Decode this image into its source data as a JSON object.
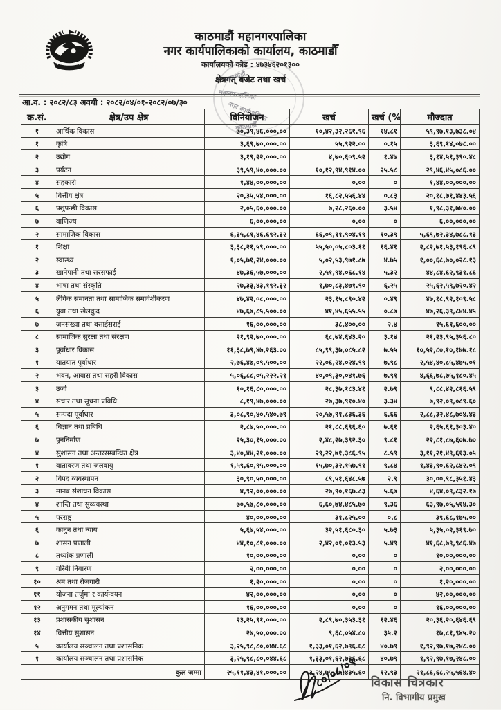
{
  "header": {
    "org_name": "काठमाडौं महानगरपालिका",
    "office_name": "नगर कार्यपालिकाको कार्यालय, काठमाडौँ",
    "office_code_line": "कार्यालयको कोड : ४७३४६२०१३००",
    "report_title": "क्षेत्रगत् बजेट तथा खर्च",
    "fiscal_line": "आ.व. : २०८२/८३ अवधी : २०८२/०४/०१-२०८२/०७/३०",
    "stamp_text_1": "काठमाडौं",
    "stamp_text_2": "महानगरपालिका",
    "stamp_text_3": "नगर कार्यपालिका",
    "stamp_text_4": "काठमाडौँ"
  },
  "table": {
    "columns": [
      "क्र.सं.",
      "क्षेत्र/उप क्षेत्र",
      "विनियोजन",
      "खर्च",
      "खर्च (%)",
      "मौज्दात"
    ],
    "rows": [
      {
        "sn": "१",
        "name": "आर्थिक विकास",
        "alloc": "७०,३९,४६,०००.००",
        "exp": "१०,४२,३२,२६१.९६",
        "pct": "१४.८१",
        "bal": "५९,९७,१३,७३८.०४",
        "main": true
      },
      {
        "sn": "१",
        "name": "कृषि",
        "alloc": "३,६९,७०,०००.००",
        "exp": "५५,९२२.००",
        "pct": "०.१५",
        "bal": "३,६९,१४,०७८.००"
      },
      {
        "sn": "२",
        "name": "उद्योग",
        "alloc": "३,१९,२२,०००.००",
        "exp": "४,७०,६०९.५२",
        "pct": "१.४७",
        "bal": "३,१४,५१,३९०.४८"
      },
      {
        "sn": "३",
        "name": "पर्यटन",
        "alloc": "३९,५९,४०,०००.००",
        "exp": "१०,१२,९४,९१४.००",
        "pct": "२५.५८",
        "bal": "२९,४६,४५,०८६.००"
      },
      {
        "sn": "४",
        "name": "सहकारी",
        "alloc": "१,४४,००,०००.००",
        "exp": "०.००",
        "pct": "०",
        "bal": "१,४४,००,०००.००"
      },
      {
        "sn": "५",
        "name": "वित्तीय क्षेत्र",
        "alloc": "२०,३५,५४,०००.००",
        "exp": "१६,८२,५५६.४४",
        "pct": "०.८३",
        "bal": "२०,१८,७१,४४३.५६"
      },
      {
        "sn": "६",
        "name": "पशुपन्छी विकास",
        "alloc": "२,०५,६०,०००.००",
        "exp": "७,२८,२६०.००",
        "pct": "३.५४",
        "bal": "१,९८,३१,७४०.००"
      },
      {
        "sn": "७",
        "name": "वाणिज्य",
        "alloc": "६,००,०००.००",
        "exp": "०.००",
        "pct": "०",
        "bal": "६,००,०००.००"
      },
      {
        "sn": "२",
        "name": "सामाजिक विकास",
        "alloc": "६,३५,८१,४६,६९२.३२",
        "exp": "६६,०९,११,९०४.१९",
        "pct": "१०.३९",
        "bal": "५,६९,७२,३४,७८८.१३",
        "main": true
      },
      {
        "sn": "१",
        "name": "शिक्षा",
        "alloc": "३,३८,२१,५९,०००.००",
        "exp": "५५,५०,०५,८०३.११",
        "pct": "१६.४१",
        "bal": "२,८२,७१,५३,१९६.८९"
      },
      {
        "sn": "२",
        "name": "स्वास्थ्य",
        "alloc": "१,०५,७१,२४,०००.००",
        "exp": "५,०२,५३,९७१.८७",
        "pct": "४.७५",
        "bal": "१,००,६८,७०,०२८.१३"
      },
      {
        "sn": "३",
        "name": "खानेपानी तथा सरसफाई",
        "alloc": "४७,३६,५७,०००.००",
        "exp": "२,५१,९४,०६८.१४",
        "pct": "५.३२",
        "bal": "४४,८४,६२,९३१.८६"
      },
      {
        "sn": "४",
        "name": "भाषा तथा संस्कृति",
        "alloc": "२७,३३,४३,१९२.३२",
        "exp": "१,७०,८३,४७१.९०",
        "pct": "६.२५",
        "bal": "२५,६२,५९,७२०.४२"
      },
      {
        "sn": "५",
        "name": "लैंगिक समानता तथा सामाजिक समावेशीकरण",
        "alloc": "४७,४२,०८,०००.००",
        "exp": "२३,१५,८९०.४२",
        "pct": "०.४९",
        "bal": "४७,१८,९२,१०९.५८"
      },
      {
        "sn": "६",
        "name": "युवा तथा खेलकुद",
        "alloc": "४७,६७,८५,५००.००",
        "exp": "४१,४५,६५५.५५",
        "pct": "०.८७",
        "bal": "४७,२६,३९,८४४.४५"
      },
      {
        "sn": "७",
        "name": "जनसंख्या तथा बसाईसराई",
        "alloc": "१६,००,०००.००",
        "exp": "३८,४००.००",
        "pct": "२.४",
        "bal": "१५,६१,६००.००"
      },
      {
        "sn": "८",
        "name": "सामाजिक सुरक्षा तथा संरक्षण",
        "alloc": "२१,९२,७०,०००.००",
        "exp": "६८,७४,६४३.२०",
        "pct": "३.१४",
        "bal": "२१,२३,९५,३५६.८०"
      },
      {
        "sn": "३",
        "name": "पूर्वाधार विकास",
        "alloc": "११,३८,७९,४७,२६३.००",
        "exp": "८५,९९,३७,०८५.८२",
        "pct": "७.५५",
        "bal": "१०,५२,८०,१०,१७७.१८",
        "main": true
      },
      {
        "sn": "१",
        "name": "यातयात पूर्वाधार",
        "alloc": "२,७६,४७,०९,५००.००",
        "exp": "२२,०६,२४,०२४.९९",
        "pct": "७.९८",
        "bal": "२,५४,४०,८५,४७५.०१"
      },
      {
        "sn": "२",
        "name": "भवन, आवास तथा सहरी विकास",
        "alloc": "५,०६,८८,०५,२२२.२१",
        "exp": "४०,०९,३०,०४१.७६",
        "pct": "७.९१",
        "bal": "४,६६,७८,७५,१८०.४५"
      },
      {
        "sn": "३",
        "name": "उर्जा",
        "alloc": "१०,१६,८०,०००.००",
        "exp": "२८,३७,१८३.४१",
        "pct": "२.७९",
        "bal": "९,८८,४२,८१६.५९"
      },
      {
        "sn": "४",
        "name": "संचार तथा सूचना प्रबिधि",
        "alloc": "८,१९,४७,०००.००",
        "exp": "२७,३७,९१०.४०",
        "pct": "३.३४",
        "bal": "७,९२,०९,०८९.६०"
      },
      {
        "sn": "५",
        "name": "सम्पदा पूर्वाधार",
        "alloc": "३,०८,९०,४०,५४०.७९",
        "exp": "२०,५७,९१,८३६.३६",
        "pct": "६.६६",
        "bal": "२,८८,३२,४८,७०४.४३"
      },
      {
        "sn": "६",
        "name": "बिज्ञान तथा प्रबिधि",
        "alloc": "२,८७,५०,०००.००",
        "exp": "२१,८८,६९६.६०",
        "pct": "७.६१",
        "bal": "२,६५,६१,३०३.४०"
      },
      {
        "sn": "७",
        "name": "पुननिर्माण",
        "alloc": "२५,३०,१५,०००.००",
        "exp": "२,४८,२७,३९२.३०",
        "pct": "९.८१",
        "bal": "२२,८१,८७,६०७.७०"
      },
      {
        "sn": "४",
        "name": "सुशासन तथा अन्तरसम्बन्धित क्षेत्र",
        "alloc": "३,४०,४४,२१,०००.००",
        "exp": "२९,२२,७१,३८६.९५",
        "pct": "८.५९",
        "bal": "३,११,२१,४९,६१३.०५",
        "main": true
      },
      {
        "sn": "१",
        "name": "वातावरण तथा जलवायु",
        "alloc": "१,५९,६०,९५,०००.००",
        "exp": "१५,७०,३२,१५७.९१",
        "pct": "९.८४",
        "bal": "१,४३,९०,६२,८४२.०९"
      },
      {
        "sn": "२",
        "name": "विपद व्यवस्थापन",
        "alloc": "३०,९०,५०,०००.००",
        "exp": "८९,५१,६४८.५७",
        "pct": "२.९",
        "bal": "३०,००,९८,३५१.४३"
      },
      {
        "sn": "३",
        "name": "मानब संशाधन विकास",
        "alloc": "४,९२,००,०००.००",
        "exp": "२७,९०,१६७.८३",
        "pct": "५.६७",
        "bal": "४,६४,०९,८३२.१७"
      },
      {
        "sn": "४",
        "name": "शान्ति तथा सुव्यवस्था",
        "alloc": "७०,५७,८०,०००.००",
        "exp": "६,६०,७४,४८५.७०",
        "pct": "९.३६",
        "bal": "६३,९७,०५,५१४.३०"
      },
      {
        "sn": "५",
        "name": "परराष्ट्र",
        "alloc": "४०,००,०००.००",
        "exp": "३१,८२५.००",
        "pct": "०.८",
        "bal": "३९,६८,१७५.००"
      },
      {
        "sn": "६",
        "name": "कानुन तथा न्याय",
        "alloc": "५,६७,५४,०००.००",
        "exp": "३२,५१,६८०.३०",
        "pct": "५.७३",
        "bal": "५,३५,०२,३१९.७०"
      },
      {
        "sn": "७",
        "name": "शासन प्रणाली",
        "alloc": "४४,१०,८१,०००.००",
        "exp": "२,४२,०१,०१३.५३",
        "pct": "५.४९",
        "bal": "४१,६८,७९,९८६.४७"
      },
      {
        "sn": "८",
        "name": "तथ्यांक प्रणाली",
        "alloc": "१०,००,०००.००",
        "exp": "०.००",
        "pct": "०",
        "bal": "१०,००,०००.००"
      },
      {
        "sn": "९",
        "name": "गरिबी निवारण",
        "alloc": "२,००,०००.००",
        "exp": "०.००",
        "pct": "०",
        "bal": "२,००,०००.००"
      },
      {
        "sn": "१०",
        "name": "श्रम तथा रोजगारी",
        "alloc": "१,२०,०००.००",
        "exp": "०.००",
        "pct": "०",
        "bal": "१,२०,०००.००"
      },
      {
        "sn": "११",
        "name": "योजना तर्जुमा र कार्यन्वयन",
        "alloc": "४२,००,०००.००",
        "exp": "०.००",
        "pct": "०",
        "bal": "४२,००,०००.००"
      },
      {
        "sn": "१२",
        "name": "अनुगमन तथा मूल्यांकन",
        "alloc": "१६,००,०००.००",
        "exp": "०.००",
        "pct": "०",
        "bal": "१६,००,०००.००"
      },
      {
        "sn": "१३",
        "name": "प्रशासकीय सुशासन",
        "alloc": "२३,२५,९१,०००.००",
        "exp": "२,८९,७०,३५३.३१",
        "pct": "१२.४६",
        "bal": "२०,३६,२०,६४६.६९"
      },
      {
        "sn": "१४",
        "name": "वित्तीय सुशासन",
        "alloc": "२७,५०,०००.००",
        "exp": "९,६८,०५४.८०",
        "pct": "३५.२",
        "bal": "१७,८१,९४५.२०"
      },
      {
        "sn": "५",
        "name": "कार्यालय सञ्चालन तथा प्रशासनिक",
        "alloc": "३,२५,९८,८०,०४४.६८",
        "exp": "१,३३,०१,६२,७९६.६८",
        "pct": "४०.७९",
        "bal": "१,९२,९७,१७,२४८.००",
        "main": true
      },
      {
        "sn": "१",
        "name": "कार्यालय सञ्चालन तथा प्रशासनिक",
        "alloc": "३,२५,९८,८०,०४४.६८",
        "exp": "१,३३,०१,६२,७९६.६८",
        "pct": "४०.७९",
        "bal": "१,९२,९७,१७,२४८.००"
      }
    ],
    "total": {
      "label": "कुल जम्मा",
      "alloc": "२५,११,४३,४१,०००.००",
      "exp": "३,२४,७५,१५,४३५.६०",
      "pct": "१२.९३",
      "bal": "२१,८६,६८,२५,५६४.४०"
    }
  },
  "footer": {
    "handwritten_date": "८०/०८/०९",
    "signature_name": "विकास चित्रकार",
    "signature_title": "नि. विभागीय प्रमुख"
  }
}
